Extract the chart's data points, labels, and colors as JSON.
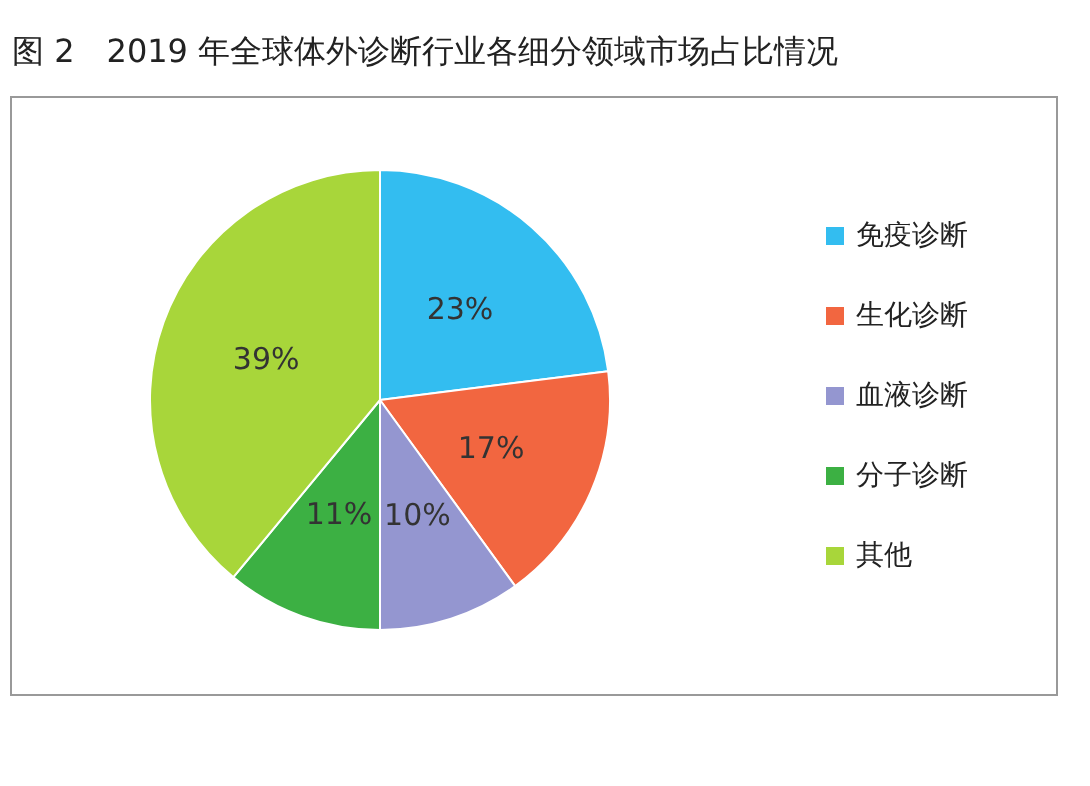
{
  "chart_data": {
    "type": "pie",
    "title": "图 2　2019 年全球体外诊断行业各细分领域市场占比情况",
    "categories": [
      "免疫诊断",
      "生化诊断",
      "血液诊断",
      "分子诊断",
      "其他"
    ],
    "values": [
      23,
      17,
      10,
      11,
      39
    ],
    "colors": [
      "#33bdf0",
      "#f26640",
      "#9496d0",
      "#3cb043",
      "#a8d63a"
    ],
    "value_labels": [
      "23%",
      "17%",
      "10%",
      "11%",
      "39%"
    ],
    "legend": "right"
  }
}
